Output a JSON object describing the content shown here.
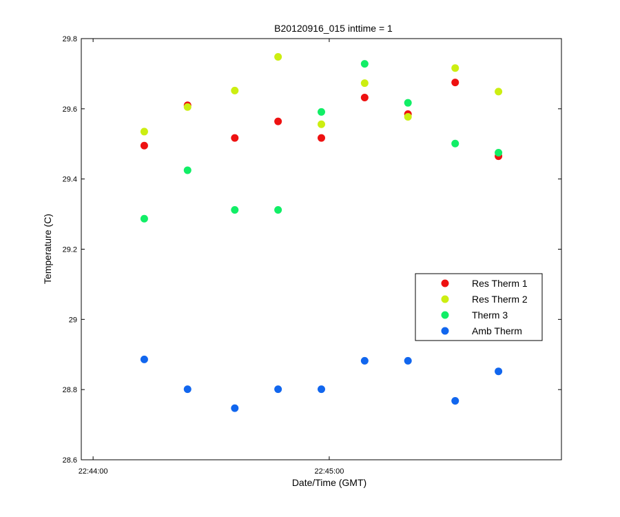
{
  "chart_data": {
    "type": "scatter",
    "title": "B20120916_015 inttime = 1",
    "xlabel": "Date/Time (GMT)",
    "ylabel": "Temperature (C)",
    "x_unit": "time_of_day",
    "xlim": [
      "22:43:57",
      "22:45:59"
    ],
    "ylim": [
      28.6,
      29.8
    ],
    "x_ticks": [
      "22:44:00",
      "22:45:00"
    ],
    "y_ticks": [
      "28.6",
      "28.8",
      "29",
      "29.2",
      "29.4",
      "29.6",
      "29.8"
    ],
    "y_tick_values": [
      28.6,
      28.8,
      29.0,
      29.2,
      29.4,
      29.6,
      29.8
    ],
    "grid": false,
    "legend_position": "right",
    "x": [
      "22:44:13",
      "22:44:24",
      "22:44:36",
      "22:44:47",
      "22:44:58",
      "22:45:09",
      "22:45:20",
      "22:45:32",
      "22:45:43"
    ],
    "series": [
      {
        "name": "Res Therm 1",
        "color": "#ee1111",
        "values": [
          29.495,
          29.61,
          29.517,
          29.564,
          29.517,
          29.632,
          29.585,
          29.675,
          29.465
        ]
      },
      {
        "name": "Res Therm 2",
        "color": "#ccee11",
        "values": [
          29.535,
          29.605,
          29.652,
          29.748,
          29.556,
          29.673,
          29.577,
          29.716,
          29.649
        ]
      },
      {
        "name": "Therm 3",
        "color": "#11ee66",
        "values": [
          29.287,
          29.425,
          29.312,
          29.312,
          29.591,
          29.728,
          29.617,
          29.501,
          29.475
        ]
      },
      {
        "name": "Amb Therm",
        "color": "#1166ee",
        "values": [
          28.886,
          28.801,
          28.747,
          28.801,
          28.801,
          28.882,
          28.882,
          28.768,
          28.852
        ]
      }
    ]
  }
}
